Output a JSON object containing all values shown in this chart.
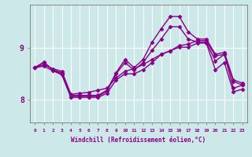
{
  "xlabel": "Windchill (Refroidissement éolien,°C)",
  "background_color": "#cce8e8",
  "grid_color": "#ffffff",
  "line_color": "#880088",
  "x_ticks": [
    0,
    1,
    2,
    3,
    4,
    5,
    6,
    7,
    8,
    9,
    10,
    11,
    12,
    13,
    14,
    15,
    16,
    17,
    18,
    19,
    20,
    21,
    22,
    23
  ],
  "y_ticks": [
    8,
    9
  ],
  "ylim": [
    7.55,
    9.85
  ],
  "xlim": [
    -0.5,
    23.5
  ],
  "series": [
    {
      "x": [
        0,
        1,
        2,
        3,
        4,
        5,
        6,
        7,
        8,
        9,
        10,
        11,
        12,
        13,
        14,
        15,
        16,
        17,
        18,
        19,
        20,
        21,
        22,
        23
      ],
      "y": [
        8.62,
        8.73,
        8.58,
        8.52,
        8.08,
        8.08,
        8.08,
        8.08,
        8.18,
        8.52,
        8.78,
        8.62,
        8.78,
        9.12,
        9.38,
        9.62,
        9.62,
        9.32,
        9.18,
        9.18,
        8.88,
        8.92,
        8.38,
        8.32
      ],
      "marker": "D",
      "markersize": 2.5,
      "linewidth": 1.0
    },
    {
      "x": [
        0,
        1,
        2,
        3,
        4,
        5,
        6,
        7,
        8,
        9,
        10,
        11,
        12,
        13,
        14,
        15,
        16,
        17,
        18,
        19,
        20,
        21,
        22,
        23
      ],
      "y": [
        8.62,
        8.72,
        8.57,
        8.5,
        8.06,
        8.06,
        8.06,
        8.06,
        8.16,
        8.5,
        8.72,
        8.57,
        8.72,
        8.96,
        9.18,
        9.42,
        9.42,
        9.18,
        9.12,
        9.12,
        8.75,
        8.88,
        8.22,
        8.28
      ],
      "marker": "D",
      "markersize": 2.5,
      "linewidth": 1.0
    },
    {
      "x": [
        0,
        1,
        2,
        3,
        4,
        5,
        6,
        7,
        8,
        9,
        10,
        11,
        12,
        13,
        14,
        15,
        16,
        17,
        18,
        19,
        20,
        21,
        22,
        23
      ],
      "y": [
        8.62,
        8.68,
        8.6,
        8.55,
        8.1,
        8.12,
        8.14,
        8.18,
        8.22,
        8.42,
        8.55,
        8.6,
        8.68,
        8.78,
        8.88,
        8.95,
        9.05,
        9.08,
        9.15,
        9.15,
        8.85,
        8.88,
        8.35,
        8.28
      ],
      "marker": "D",
      "markersize": 2.5,
      "linewidth": 1.0
    },
    {
      "x": [
        0,
        1,
        2,
        3,
        4,
        5,
        6,
        7,
        8,
        9,
        10,
        11,
        12,
        13,
        14,
        15,
        16,
        17,
        18,
        19,
        20,
        21,
        22,
        23
      ],
      "y": [
        8.62,
        8.65,
        8.56,
        8.48,
        8.04,
        8.04,
        8.04,
        8.04,
        8.12,
        8.38,
        8.5,
        8.5,
        8.58,
        8.72,
        8.88,
        8.95,
        9.02,
        9.02,
        9.1,
        9.1,
        8.58,
        8.72,
        8.15,
        8.2
      ],
      "marker": "D",
      "markersize": 2.5,
      "linewidth": 1.0
    }
  ]
}
